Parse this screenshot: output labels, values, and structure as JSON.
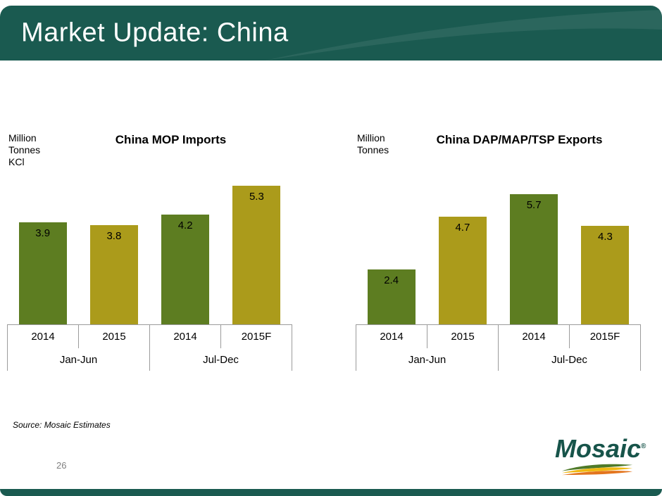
{
  "header": {
    "title": "Market Update: China"
  },
  "footer": {
    "source": "Source: Mosaic Estimates",
    "page_number": "26"
  },
  "logo": {
    "brand": "Mosaic",
    "registered": "®"
  },
  "colors": {
    "header_teal": "#1a5a50",
    "bar_green": "#5d7d21",
    "bar_gold": "#ab9b1b",
    "axis_line": "#9b9b9b",
    "swoosh_green": "#4f7a28",
    "swoosh_yellow": "#f0b810",
    "swoosh_orange": "#e3751e"
  },
  "chart_data": [
    {
      "type": "bar",
      "title": "China MOP Imports",
      "unit_label_lines": [
        "Million",
        "Tonnes",
        "KCl"
      ],
      "categories": [
        "2014",
        "2015",
        "2014",
        "2015F"
      ],
      "group_labels": [
        "Jan-Jun",
        "Jul-Dec"
      ],
      "values": [
        3.9,
        3.8,
        4.2,
        5.3
      ],
      "value_labels": [
        "3.9",
        "3.8",
        "4.2",
        "5.3"
      ],
      "bar_colors": [
        "#5d7d21",
        "#ab9b1b",
        "#5d7d21",
        "#ab9b1b"
      ],
      "ylim": [
        0,
        7
      ],
      "grid": false,
      "legend": false
    },
    {
      "type": "bar",
      "title": "China DAP/MAP/TSP Exports",
      "unit_label_lines": [
        "Million",
        "Tonnes"
      ],
      "categories": [
        "2014",
        "2015",
        "2014",
        "2015F"
      ],
      "group_labels": [
        "Jan-Jun",
        "Jul-Dec"
      ],
      "values": [
        2.4,
        4.7,
        5.7,
        4.3
      ],
      "value_labels": [
        "2.4",
        "4.7",
        "5.7",
        "4.3"
      ],
      "bar_colors": [
        "#5d7d21",
        "#ab9b1b",
        "#5d7d21",
        "#ab9b1b"
      ],
      "ylim": [
        0,
        8
      ],
      "grid": false,
      "legend": false
    }
  ]
}
